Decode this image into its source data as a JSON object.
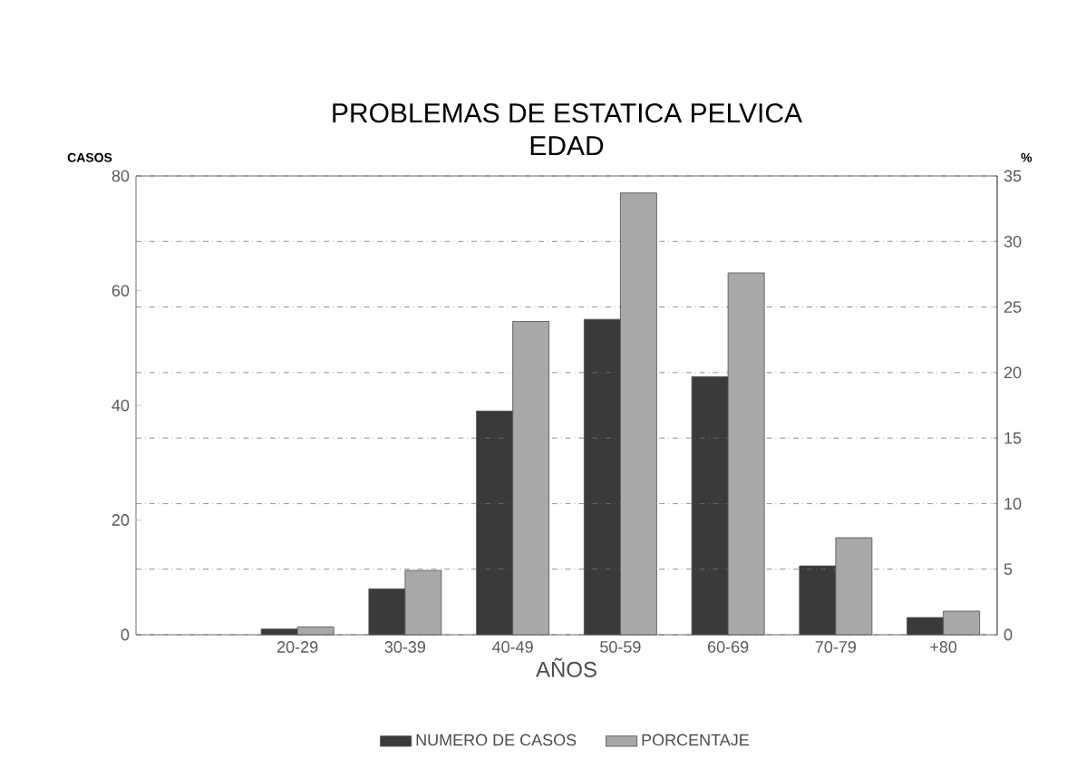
{
  "chart_data": {
    "type": "bar",
    "title": "PROBLEMAS DE ESTATICA PELVICA",
    "subtitle": "EDAD",
    "xlabel": "AÑOS",
    "ylabel": "CASOS",
    "y2label": "%",
    "categories": [
      null,
      "20-29",
      "30-39",
      "40-49",
      "50-59",
      "60-69",
      "70-79",
      "+80"
    ],
    "series": [
      {
        "name": "NUMERO DE CASOS",
        "color": "#3a3a3a",
        "values": [
          null,
          1,
          8,
          39,
          55,
          45,
          12,
          3
        ]
      },
      {
        "name": "PORCENTAJE",
        "color": "#a8a8a8",
        "axis": "y2",
        "values": [
          null,
          0.6,
          4.9,
          23.9,
          33.7,
          27.6,
          7.4,
          1.8
        ]
      }
    ],
    "ylim": [
      0,
      80
    ],
    "yticks": [
      0,
      20,
      40,
      60,
      80
    ],
    "y2lim": [
      0,
      35
    ],
    "y2ticks": [
      0,
      5,
      10,
      15,
      20,
      25,
      30,
      35
    ],
    "grid": "y",
    "legend": "bottom"
  }
}
